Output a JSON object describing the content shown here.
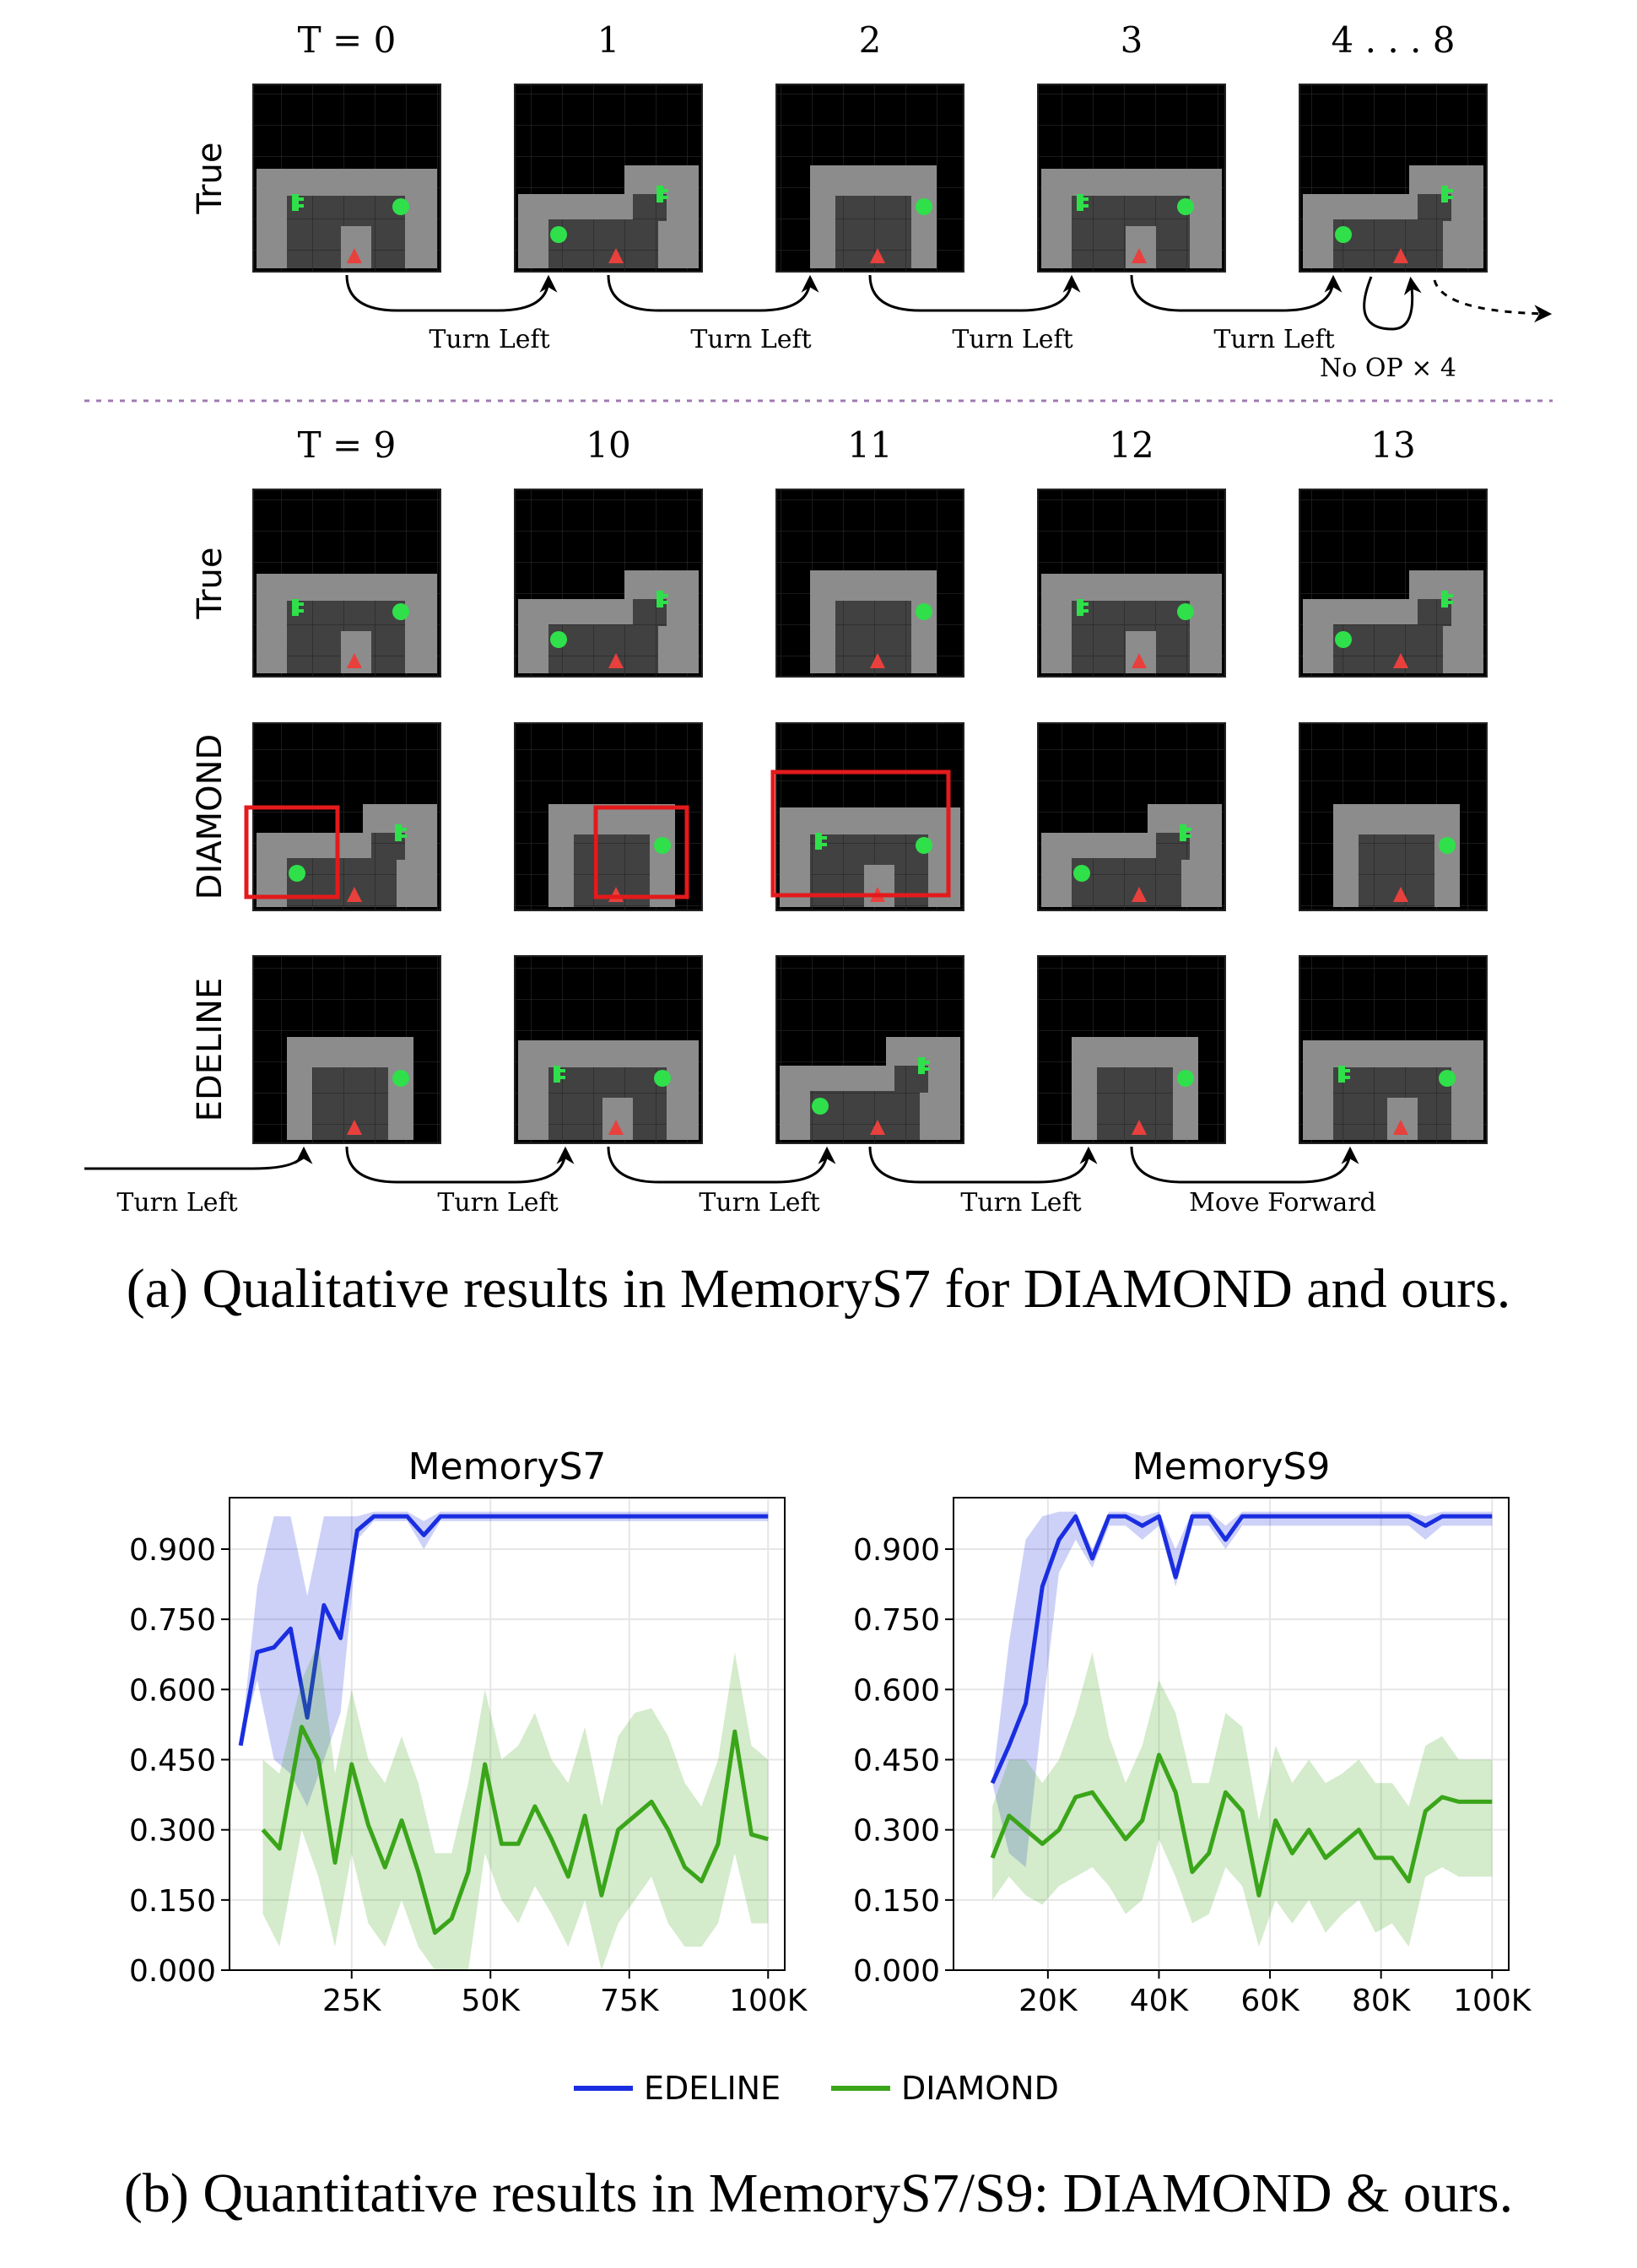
{
  "sequence": {
    "top_labels": [
      "T = 0",
      "1",
      "2",
      "3",
      "4 . . . 8"
    ],
    "bottom_labels": [
      "T = 9",
      "10",
      "11",
      "12",
      "13"
    ],
    "row_labels_top": [
      "True"
    ],
    "row_labels_bottom": [
      "True",
      "DIAMOND",
      "EDELINE"
    ],
    "actions_top": [
      "Turn Left",
      "Turn Left",
      "Turn Left",
      "Turn Left"
    ],
    "noop_label": "No OP × 4",
    "actions_bottom": [
      "Turn Left",
      "Turn Left",
      "Turn Left",
      "Turn Left",
      "Move Forward"
    ],
    "agent_color": "#e8403c",
    "object_color": "#2fe04a",
    "highlight_color": "#e31a1c",
    "separator_color": "#a07ab0"
  },
  "caption_a": "(a) Qualitative results in MemoryS7 for DIAMOND and ours.",
  "caption_b": "(b) Quantitative results in MemoryS7/S9: DIAMOND & ours.",
  "legend": [
    "EDELINE",
    "DIAMOND"
  ],
  "chart_data": [
    {
      "type": "line",
      "title": "MemoryS7",
      "xlabel": "",
      "ylabel": "",
      "x_ticks": [
        "25K",
        "50K",
        "75K",
        "100K"
      ],
      "y_ticks": [
        "0.000",
        "0.150",
        "0.300",
        "0.450",
        "0.600",
        "0.750",
        "0.900"
      ],
      "xlim": [
        3000,
        103000
      ],
      "ylim": [
        0,
        1.01
      ],
      "grid": true,
      "series": [
        {
          "name": "EDELINE",
          "color": "#1a2ee0",
          "x": [
            5000,
            8000,
            11000,
            14000,
            17000,
            20000,
            23000,
            26000,
            29000,
            32000,
            35000,
            38000,
            41000,
            44000,
            50000,
            60000,
            70000,
            80000,
            90000,
            100000
          ],
          "values": [
            0.48,
            0.68,
            0.69,
            0.73,
            0.54,
            0.78,
            0.71,
            0.94,
            0.97,
            0.97,
            0.97,
            0.93,
            0.97,
            0.97,
            0.97,
            0.97,
            0.97,
            0.97,
            0.97,
            0.97
          ],
          "lower": [
            0.48,
            0.62,
            0.45,
            0.42,
            0.35,
            0.45,
            0.55,
            0.92,
            0.96,
            0.96,
            0.96,
            0.9,
            0.96,
            0.96,
            0.96,
            0.96,
            0.96,
            0.96,
            0.96,
            0.96
          ],
          "upper": [
            0.48,
            0.82,
            0.97,
            0.97,
            0.8,
            0.97,
            0.97,
            0.97,
            0.98,
            0.98,
            0.98,
            0.96,
            0.98,
            0.98,
            0.98,
            0.98,
            0.98,
            0.98,
            0.98,
            0.98
          ]
        },
        {
          "name": "DIAMOND",
          "color": "#3aa519",
          "x": [
            9000,
            12000,
            16000,
            19000,
            22000,
            25000,
            28000,
            31000,
            34000,
            37000,
            40000,
            43000,
            46000,
            49000,
            52000,
            55000,
            58000,
            61000,
            64000,
            67000,
            70000,
            73000,
            76000,
            79000,
            82000,
            85000,
            88000,
            91000,
            94000,
            97000,
            100000
          ],
          "values": [
            0.3,
            0.26,
            0.52,
            0.45,
            0.23,
            0.44,
            0.31,
            0.22,
            0.32,
            0.21,
            0.08,
            0.11,
            0.21,
            0.44,
            0.27,
            0.27,
            0.35,
            0.28,
            0.2,
            0.33,
            0.16,
            0.3,
            0.33,
            0.36,
            0.3,
            0.22,
            0.19,
            0.27,
            0.51,
            0.29,
            0.28
          ],
          "lower": [
            0.12,
            0.05,
            0.3,
            0.2,
            0.05,
            0.25,
            0.1,
            0.05,
            0.15,
            0.05,
            0.0,
            0.0,
            0.0,
            0.25,
            0.15,
            0.1,
            0.18,
            0.12,
            0.05,
            0.15,
            0.0,
            0.1,
            0.15,
            0.2,
            0.1,
            0.05,
            0.05,
            0.1,
            0.25,
            0.1,
            0.1
          ],
          "upper": [
            0.45,
            0.42,
            0.62,
            0.7,
            0.42,
            0.6,
            0.45,
            0.4,
            0.5,
            0.4,
            0.25,
            0.25,
            0.4,
            0.6,
            0.45,
            0.48,
            0.55,
            0.45,
            0.4,
            0.52,
            0.35,
            0.5,
            0.55,
            0.56,
            0.5,
            0.4,
            0.35,
            0.45,
            0.68,
            0.48,
            0.45
          ]
        }
      ]
    },
    {
      "type": "line",
      "title": "MemoryS9",
      "xlabel": "",
      "ylabel": "",
      "x_ticks": [
        "20K",
        "40K",
        "60K",
        "80K",
        "100K"
      ],
      "y_ticks": [
        "0.000",
        "0.150",
        "0.300",
        "0.450",
        "0.600",
        "0.750",
        "0.900"
      ],
      "xlim": [
        3000,
        103000
      ],
      "ylim": [
        0,
        1.01
      ],
      "grid": true,
      "series": [
        {
          "name": "EDELINE",
          "color": "#1a2ee0",
          "x": [
            10000,
            13000,
            16000,
            19000,
            22000,
            25000,
            28000,
            31000,
            34000,
            37000,
            40000,
            43000,
            46000,
            49000,
            52000,
            55000,
            58000,
            61000,
            64000,
            67000,
            70000,
            73000,
            76000,
            79000,
            82000,
            85000,
            88000,
            91000,
            94000,
            97000,
            100000
          ],
          "values": [
            0.4,
            0.48,
            0.57,
            0.82,
            0.92,
            0.97,
            0.88,
            0.97,
            0.97,
            0.95,
            0.97,
            0.84,
            0.97,
            0.97,
            0.92,
            0.97,
            0.97,
            0.97,
            0.97,
            0.97,
            0.97,
            0.97,
            0.97,
            0.97,
            0.97,
            0.97,
            0.95,
            0.97,
            0.97,
            0.97,
            0.97
          ],
          "lower": [
            0.4,
            0.25,
            0.22,
            0.55,
            0.85,
            0.92,
            0.86,
            0.95,
            0.95,
            0.92,
            0.95,
            0.82,
            0.95,
            0.95,
            0.9,
            0.95,
            0.95,
            0.95,
            0.95,
            0.95,
            0.95,
            0.95,
            0.95,
            0.95,
            0.95,
            0.95,
            0.92,
            0.95,
            0.95,
            0.95,
            0.95
          ],
          "upper": [
            0.4,
            0.7,
            0.92,
            0.97,
            0.98,
            0.98,
            0.9,
            0.98,
            0.98,
            0.97,
            0.98,
            0.9,
            0.98,
            0.98,
            0.95,
            0.98,
            0.98,
            0.98,
            0.98,
            0.98,
            0.98,
            0.98,
            0.98,
            0.98,
            0.98,
            0.98,
            0.97,
            0.98,
            0.98,
            0.98,
            0.98
          ]
        },
        {
          "name": "DIAMOND",
          "color": "#3aa519",
          "x": [
            10000,
            13000,
            16000,
            19000,
            22000,
            25000,
            28000,
            31000,
            34000,
            37000,
            40000,
            43000,
            46000,
            49000,
            52000,
            55000,
            58000,
            61000,
            64000,
            67000,
            70000,
            73000,
            76000,
            79000,
            82000,
            85000,
            88000,
            91000,
            94000,
            97000,
            100000
          ],
          "values": [
            0.24,
            0.33,
            0.3,
            0.27,
            0.3,
            0.37,
            0.38,
            0.33,
            0.28,
            0.32,
            0.46,
            0.38,
            0.21,
            0.25,
            0.38,
            0.34,
            0.16,
            0.32,
            0.25,
            0.3,
            0.24,
            0.27,
            0.3,
            0.24,
            0.24,
            0.19,
            0.34,
            0.37,
            0.36,
            0.36,
            0.36
          ],
          "lower": [
            0.15,
            0.2,
            0.16,
            0.14,
            0.18,
            0.2,
            0.22,
            0.18,
            0.12,
            0.15,
            0.28,
            0.2,
            0.1,
            0.12,
            0.22,
            0.18,
            0.05,
            0.15,
            0.1,
            0.15,
            0.08,
            0.12,
            0.15,
            0.08,
            0.1,
            0.05,
            0.2,
            0.22,
            0.2,
            0.2,
            0.2
          ],
          "upper": [
            0.35,
            0.45,
            0.45,
            0.4,
            0.45,
            0.55,
            0.68,
            0.5,
            0.4,
            0.48,
            0.62,
            0.55,
            0.4,
            0.4,
            0.55,
            0.52,
            0.32,
            0.48,
            0.4,
            0.45,
            0.4,
            0.42,
            0.45,
            0.4,
            0.4,
            0.35,
            0.48,
            0.5,
            0.45,
            0.45,
            0.45
          ]
        }
      ]
    }
  ]
}
